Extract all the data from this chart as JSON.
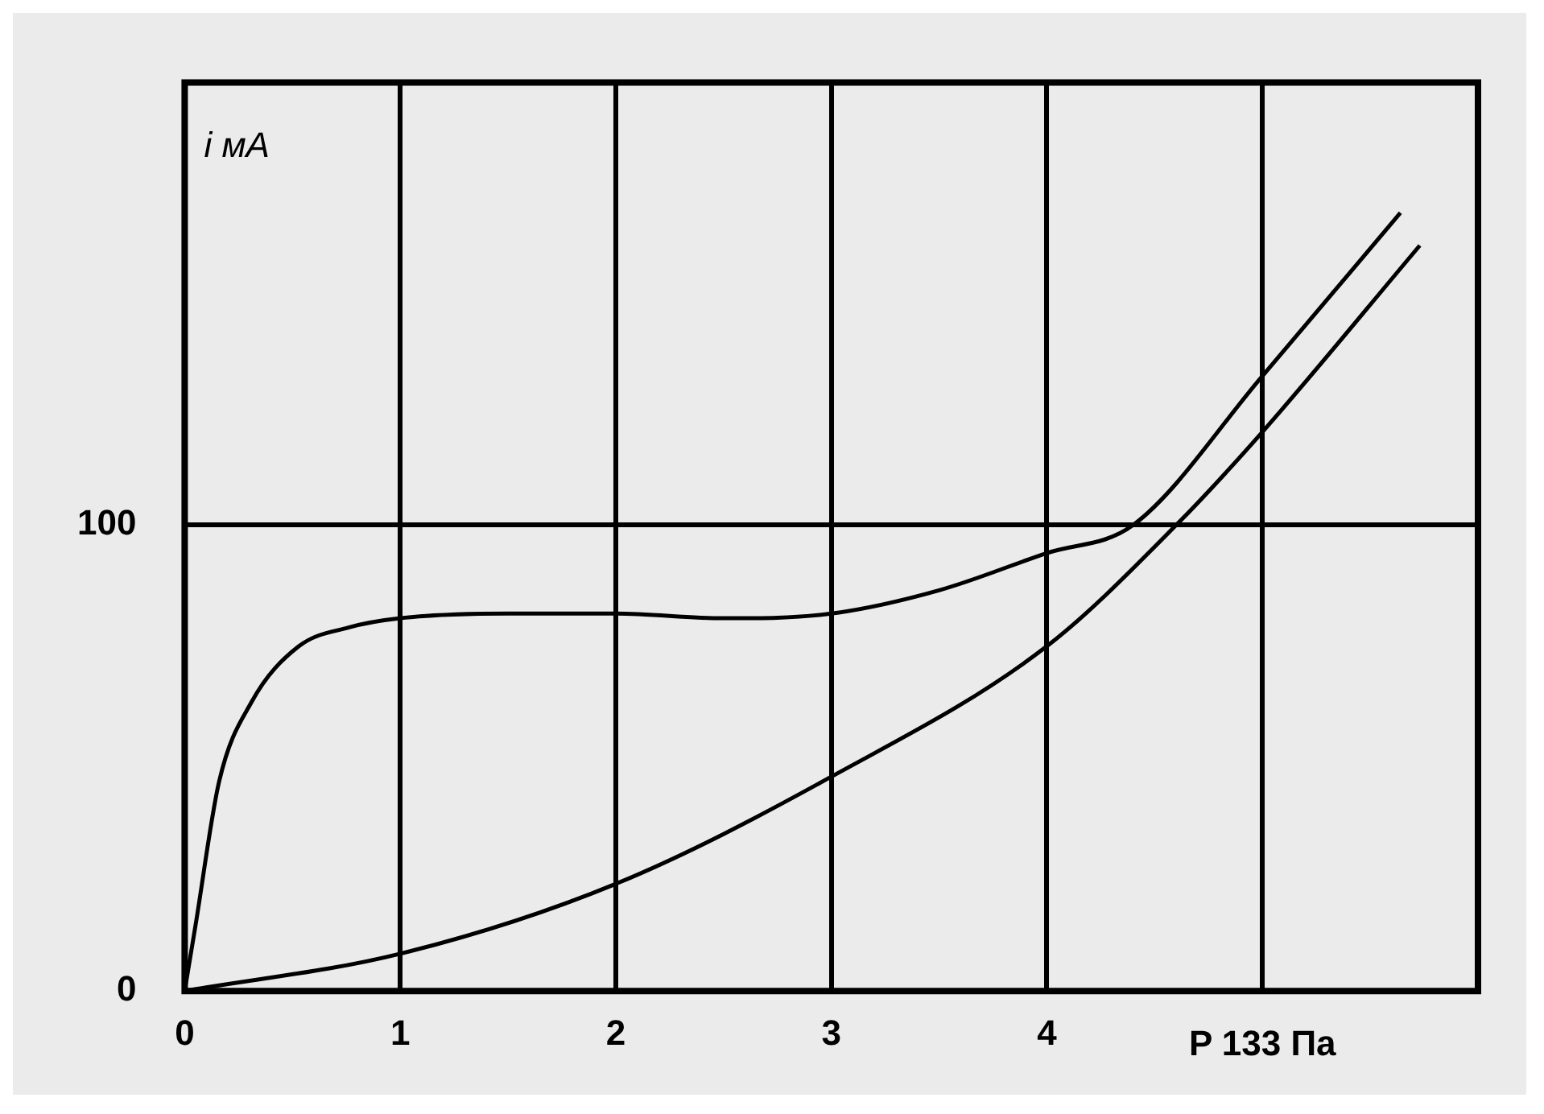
{
  "chart_data": {
    "type": "line",
    "xlabel": "P 133 Па",
    "ylabel": "i мA",
    "xlim": [
      0,
      6
    ],
    "ylim": [
      0,
      195
    ],
    "xticks": [
      0,
      1,
      2,
      3,
      4,
      {
        "value": 5,
        "label": null
      }
    ],
    "yticks": [
      0,
      100
    ],
    "grid": true,
    "legend": false,
    "marker": "none",
    "line_style": "solid",
    "series": [
      {
        "color": "#000000",
        "x": [
          0,
          0.05,
          0.16,
          0.31,
          0.53,
          0.76,
          1,
          1.5,
          2,
          2.5,
          3,
          3.5,
          4,
          4.4,
          5,
          5.64
        ],
        "values": [
          0,
          14,
          45,
          62,
          74,
          78,
          80,
          81,
          81,
          80,
          81,
          86,
          94,
          100,
          132,
          167
        ]
      },
      {
        "color": "#000000",
        "x": [
          0,
          1,
          2,
          3,
          4,
          4.6,
          5,
          5.73
        ],
        "values": [
          0,
          8,
          23,
          46,
          74,
          100,
          120,
          160
        ]
      }
    ]
  }
}
